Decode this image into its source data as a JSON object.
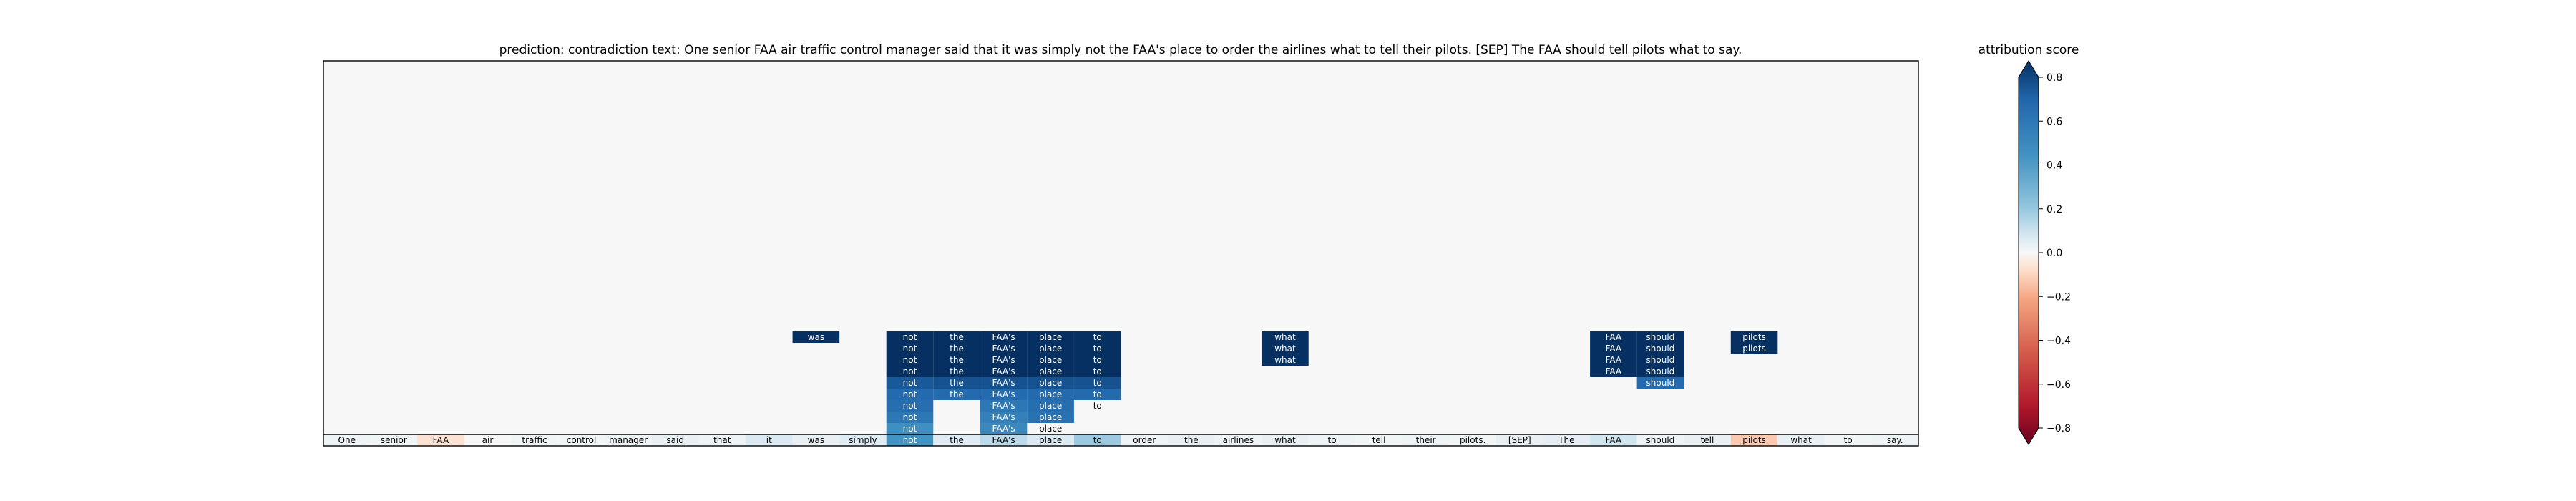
{
  "chart_data": {
    "type": "heatmap",
    "title": "prediction:  contradiction     text:  One senior FAA air traffic control manager said that it was simply not the FAA's place to order the airlines what to tell their pilots. [SEP] The FAA should tell pilots what to say.",
    "tokens": [
      "One",
      "senior",
      "FAA",
      "air",
      "traffic",
      "control",
      "manager",
      "said",
      "that",
      "it",
      "was",
      "simply",
      "not",
      "the",
      "FAA's",
      "place",
      "to",
      "order",
      "the",
      "airlines",
      "what",
      "to",
      "tell",
      "their",
      "pilots.",
      "[SEP]",
      "The",
      "FAA",
      "should",
      "tell",
      "pilots",
      "what",
      "to",
      "say."
    ],
    "token_scores": [
      0.02,
      0.01,
      -0.06,
      0.0,
      0.01,
      0.01,
      0.02,
      0.03,
      0.02,
      0.06,
      0.03,
      0.05,
      0.4,
      0.05,
      0.12,
      0.06,
      0.18,
      0.02,
      0.03,
      0.02,
      0.03,
      0.02,
      0.01,
      0.02,
      0.01,
      0.03,
      0.04,
      0.08,
      0.02,
      0.03,
      -0.12,
      0.03,
      0.01,
      0.02
    ],
    "stacked_cells": [
      {
        "row": 1,
        "col": 12,
        "text": "not",
        "score": 0.42
      },
      {
        "row": 1,
        "col": 14,
        "text": "FAA's",
        "score": 0.46
      },
      {
        "row": 1,
        "col": 15,
        "text": "place",
        "score": 0.0
      },
      {
        "row": 2,
        "col": 12,
        "text": "not",
        "score": 0.55
      },
      {
        "row": 2,
        "col": 14,
        "text": "FAA's",
        "score": 0.5
      },
      {
        "row": 2,
        "col": 15,
        "text": "place",
        "score": 0.58
      },
      {
        "row": 3,
        "col": 12,
        "text": "not",
        "score": 0.6
      },
      {
        "row": 3,
        "col": 14,
        "text": "FAA's",
        "score": 0.55
      },
      {
        "row": 3,
        "col": 15,
        "text": "place",
        "score": 0.6
      },
      {
        "row": 3,
        "col": 16,
        "text": "to",
        "score": 0.0
      },
      {
        "row": 4,
        "col": 12,
        "text": "not",
        "score": 0.62
      },
      {
        "row": 4,
        "col": 13,
        "text": "the",
        "score": 0.62
      },
      {
        "row": 4,
        "col": 14,
        "text": "FAA's",
        "score": 0.62
      },
      {
        "row": 4,
        "col": 15,
        "text": "place",
        "score": 0.62
      },
      {
        "row": 4,
        "col": 16,
        "text": "to",
        "score": 0.62
      },
      {
        "row": 5,
        "col": 12,
        "text": "not",
        "score": 0.68
      },
      {
        "row": 5,
        "col": 13,
        "text": "the",
        "score": 0.7
      },
      {
        "row": 5,
        "col": 14,
        "text": "FAA's",
        "score": 0.7
      },
      {
        "row": 5,
        "col": 15,
        "text": "place",
        "score": 0.7
      },
      {
        "row": 5,
        "col": 16,
        "text": "to",
        "score": 0.7
      },
      {
        "row": 5,
        "col": 28,
        "text": "should",
        "score": 0.62
      },
      {
        "row": 6,
        "col": 12,
        "text": "not",
        "score": 0.88
      },
      {
        "row": 6,
        "col": 13,
        "text": "the",
        "score": 0.8
      },
      {
        "row": 6,
        "col": 14,
        "text": "FAA's",
        "score": 0.8
      },
      {
        "row": 6,
        "col": 15,
        "text": "place",
        "score": 0.8
      },
      {
        "row": 6,
        "col": 16,
        "text": "to",
        "score": 0.8
      },
      {
        "row": 6,
        "col": 27,
        "text": "FAA",
        "score": 0.82
      },
      {
        "row": 6,
        "col": 28,
        "text": "should",
        "score": 0.82
      },
      {
        "row": 7,
        "col": 12,
        "text": "not",
        "score": 0.82
      },
      {
        "row": 7,
        "col": 13,
        "text": "the",
        "score": 0.85
      },
      {
        "row": 7,
        "col": 14,
        "text": "FAA's",
        "score": 0.85
      },
      {
        "row": 7,
        "col": 15,
        "text": "place",
        "score": 0.85
      },
      {
        "row": 7,
        "col": 16,
        "text": "to",
        "score": 0.85
      },
      {
        "row": 7,
        "col": 20,
        "text": "what",
        "score": 0.85
      },
      {
        "row": 7,
        "col": 27,
        "text": "FAA",
        "score": 0.82
      },
      {
        "row": 7,
        "col": 28,
        "text": "should",
        "score": 0.82
      },
      {
        "row": 8,
        "col": 12,
        "text": "not",
        "score": 0.8
      },
      {
        "row": 8,
        "col": 13,
        "text": "the",
        "score": 0.8
      },
      {
        "row": 8,
        "col": 14,
        "text": "FAA's",
        "score": 0.8
      },
      {
        "row": 8,
        "col": 15,
        "text": "place",
        "score": 0.8
      },
      {
        "row": 8,
        "col": 16,
        "text": "to",
        "score": 0.8
      },
      {
        "row": 8,
        "col": 20,
        "text": "what",
        "score": 0.8
      },
      {
        "row": 8,
        "col": 27,
        "text": "FAA",
        "score": 0.8
      },
      {
        "row": 8,
        "col": 28,
        "text": "should",
        "score": 0.8
      },
      {
        "row": 8,
        "col": 30,
        "text": "pilots",
        "score": 0.8
      },
      {
        "row": 9,
        "col": 10,
        "text": "was",
        "score": 0.8
      },
      {
        "row": 9,
        "col": 12,
        "text": "not",
        "score": 0.8
      },
      {
        "row": 9,
        "col": 13,
        "text": "the",
        "score": 0.8
      },
      {
        "row": 9,
        "col": 14,
        "text": "FAA's",
        "score": 0.8
      },
      {
        "row": 9,
        "col": 15,
        "text": "place",
        "score": 0.8
      },
      {
        "row": 9,
        "col": 16,
        "text": "to",
        "score": 0.8
      },
      {
        "row": 9,
        "col": 20,
        "text": "what",
        "score": 0.8
      },
      {
        "row": 9,
        "col": 27,
        "text": "FAA",
        "score": 0.8
      },
      {
        "row": 9,
        "col": 28,
        "text": "should",
        "score": 0.8
      },
      {
        "row": 9,
        "col": 30,
        "text": "pilots",
        "score": 0.8
      }
    ],
    "colorbar": {
      "label": "attribution score",
      "min": -0.8,
      "max": 0.8,
      "ticks": [
        0.8,
        0.6,
        0.4,
        0.2,
        0.0,
        -0.2,
        -0.4,
        -0.6,
        -0.8
      ],
      "tick_labels": [
        "0.8",
        "0.6",
        "0.4",
        "0.2",
        "0.0",
        "−0.2",
        "−0.4",
        "−0.6",
        "−0.8"
      ],
      "colormap": "RdBu",
      "extend": "both"
    },
    "background_color": "#f7f7f7",
    "grid": false
  }
}
